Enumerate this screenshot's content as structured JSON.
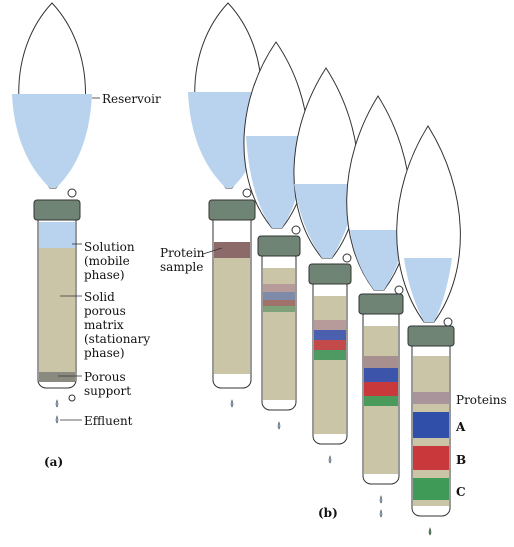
{
  "labels": {
    "reservoir": "Reservoir",
    "solution": "Solution\n(mobile\nphase)",
    "matrix": "Solid\nporous\nmatrix\n(stationary\nphase)",
    "porous_support": "Porous\nsupport",
    "effluent": "Effluent",
    "protein_sample": "Protein\nsample",
    "proteins": "Proteins",
    "protein_a": "A",
    "protein_b": "B",
    "protein_c": "C",
    "panel_a": "(a)",
    "panel_b": "(b)"
  },
  "colors": {
    "liquid": "#b9d3ee",
    "matrix": "#c9c5a6",
    "stopper": "#6f8474",
    "glass_outline": "#333333",
    "protein_sample": "#8c6a6a",
    "band_a": "#2f4fa8",
    "band_b": "#c9383a",
    "band_c": "#3f9a58"
  }
}
